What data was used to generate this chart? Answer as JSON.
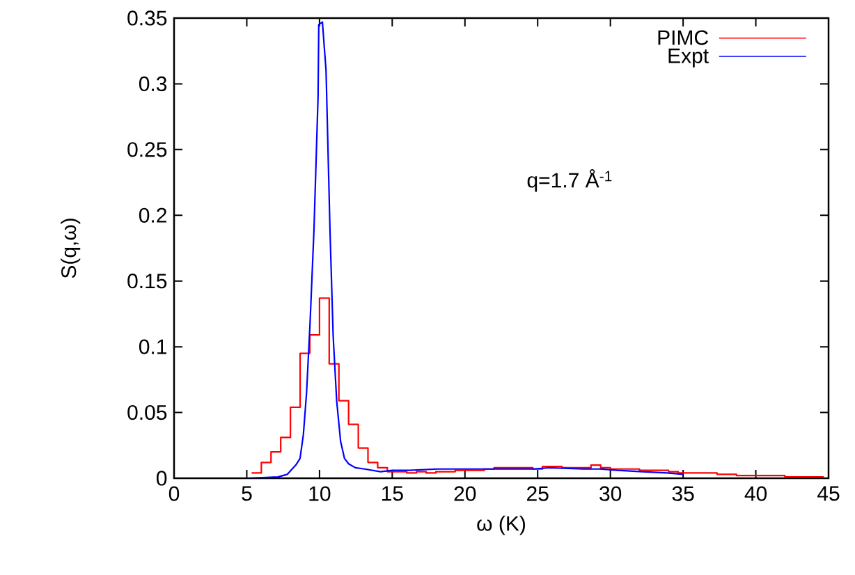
{
  "chart_data": {
    "type": "histogram",
    "xlabel": "ω (K)",
    "ylabel": "S(q,ω)",
    "annotations": [
      "q=1.7 Å$^{-1}$"
    ],
    "xlim": [
      0,
      45
    ],
    "ylim": [
      0,
      0.35
    ],
    "xticks": [
      0,
      5,
      10,
      15,
      20,
      25,
      30,
      35,
      40,
      45
    ],
    "yticks": [
      0,
      0.05,
      0.1,
      0.15,
      0.2,
      0.25,
      0.3,
      0.35
    ],
    "legend": "top right",
    "grid": false,
    "series": [
      {
        "name": "PIMC",
        "type": "histogram",
        "color": "#ff0000",
        "bins": [
          5.333,
          6,
          6.667,
          7.333,
          8,
          8.667,
          9.333,
          10,
          10.667,
          11.333,
          12,
          12.667,
          13.333,
          14,
          14.667,
          15.333,
          16,
          16.667,
          17.333,
          18,
          18.667,
          19.333,
          20,
          20.667,
          21.333,
          22,
          22.667,
          23.333,
          24,
          24.667,
          25.333,
          26,
          26.667,
          27.333,
          28,
          28.667,
          29.333,
          30,
          30.667,
          31.333,
          32,
          32.667,
          33.333,
          34,
          34.667,
          35.333,
          36,
          36.667,
          37.333,
          38,
          38.667,
          39.333,
          40,
          40.667,
          41.333,
          42,
          42.667,
          43.333,
          44,
          44.667
        ],
        "values": [
          0.004,
          0.012,
          0.02,
          0.031,
          0.054,
          0.095,
          0.109,
          0.137,
          0.087,
          0.059,
          0.041,
          0.023,
          0.012,
          0.008,
          0.005,
          0.005,
          0.004,
          0.005,
          0.004,
          0.005,
          0.005,
          0.006,
          0.006,
          0.006,
          0.007,
          0.008,
          0.008,
          0.008,
          0.008,
          0.007,
          0.009,
          0.009,
          0.008,
          0.008,
          0.008,
          0.01,
          0.008,
          0.007,
          0.007,
          0.007,
          0.006,
          0.006,
          0.006,
          0.005,
          0.004,
          0.004,
          0.004,
          0.004,
          0.003,
          0.003,
          0.002,
          0.002,
          0.002,
          0.002,
          0.002,
          0.001,
          0.001,
          0.001,
          0.001
        ]
      },
      {
        "name": "Expt",
        "type": "line",
        "color": "#0000ff",
        "x": [
          5,
          7.15,
          7.79,
          8.37,
          8.66,
          8.89,
          9.11,
          9.35,
          9.62,
          9.9,
          9.95,
          10.2,
          10.45,
          10.72,
          10.94,
          11.18,
          11.45,
          11.72,
          12.0,
          12.46,
          13.1,
          14.2,
          15,
          16.2,
          18.1,
          20,
          22.2,
          24.7,
          25.8,
          28.1,
          29.3,
          30.5,
          32.2,
          33.9,
          35
        ],
        "values": [
          0,
          0.001,
          0.003,
          0.01,
          0.015,
          0.033,
          0.065,
          0.118,
          0.189,
          0.29,
          0.345,
          0.347,
          0.31,
          0.189,
          0.108,
          0.059,
          0.028,
          0.015,
          0.011,
          0.008,
          0.007,
          0.005,
          0.006,
          0.006,
          0.007,
          0.007,
          0.007,
          0.007,
          0.008,
          0.007,
          0.007,
          0.006,
          0.005,
          0.004,
          0.003
        ]
      }
    ]
  }
}
